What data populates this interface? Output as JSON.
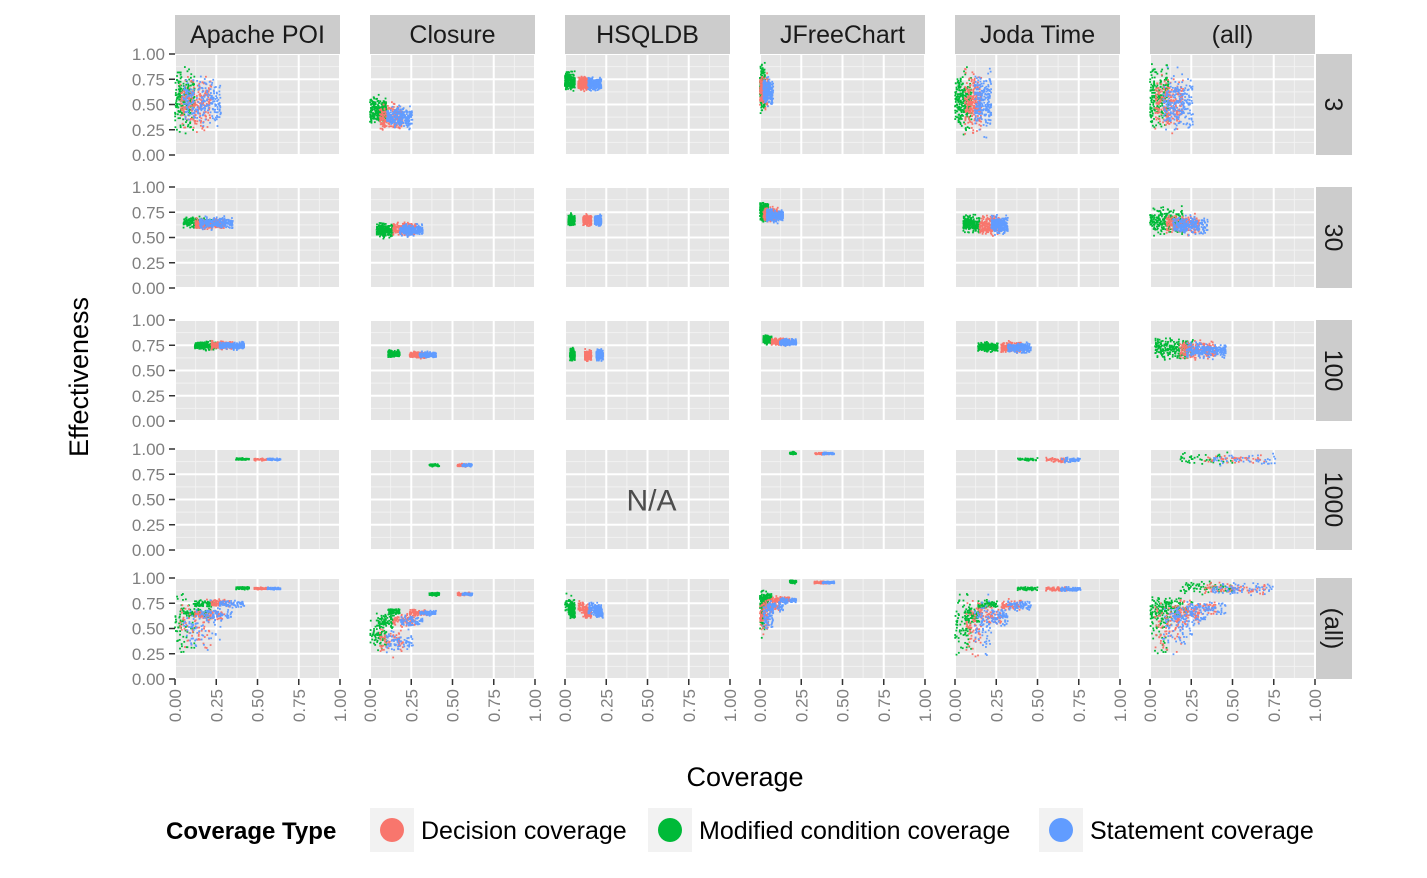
{
  "chart_data": {
    "type": "scatter",
    "facet_columns": [
      "Apache POI",
      "Closure",
      "HSQLDB",
      "JFreeChart",
      "Joda Time",
      "(all)"
    ],
    "facet_rows": [
      "3",
      "30",
      "100",
      "1000",
      "(all)"
    ],
    "xlabel": "Coverage",
    "ylabel": "Effectiveness",
    "xlim": [
      0,
      1
    ],
    "ylim": [
      0,
      1
    ],
    "x_ticks": [
      "0.00",
      "0.25",
      "0.50",
      "0.75",
      "1.00"
    ],
    "y_ticks": [
      "0.00",
      "0.25",
      "0.50",
      "0.75",
      "1.00"
    ],
    "grid": true,
    "legend": {
      "title": "Coverage Type",
      "position": "bottom",
      "items": [
        {
          "name": "Decision coverage",
          "color": "#F8766D"
        },
        {
          "name": "Modified condition coverage",
          "color": "#00BA38"
        },
        {
          "name": "Statement coverage",
          "color": "#619CFF"
        }
      ]
    },
    "missing_panel_label": "N/A",
    "missing_panels": [
      {
        "row": "1000",
        "col": "HSQLDB"
      }
    ],
    "series_keys": [
      "decision",
      "mcc",
      "statement"
    ],
    "clusters": {
      "Apache POI": {
        "3": {
          "decision": {
            "x": [
              0.03,
              0.22
            ],
            "y": [
              0.18,
              0.85
            ]
          },
          "mcc": {
            "x": [
              0.0,
              0.12
            ],
            "y": [
              0.15,
              0.95
            ]
          },
          "statement": {
            "x": [
              0.05,
              0.28
            ],
            "y": [
              0.2,
              0.82
            ]
          }
        },
        "30": {
          "decision": {
            "x": [
              0.12,
              0.3
            ],
            "y": [
              0.57,
              0.7
            ]
          },
          "mcc": {
            "x": [
              0.05,
              0.22
            ],
            "y": [
              0.58,
              0.72
            ]
          },
          "statement": {
            "x": [
              0.15,
              0.35
            ],
            "y": [
              0.56,
              0.72
            ]
          }
        },
        "100": {
          "decision": {
            "x": [
              0.22,
              0.35
            ],
            "y": [
              0.7,
              0.8
            ]
          },
          "mcc": {
            "x": [
              0.12,
              0.25
            ],
            "y": [
              0.69,
              0.8
            ]
          },
          "statement": {
            "x": [
              0.27,
              0.42
            ],
            "y": [
              0.7,
              0.79
            ]
          }
        },
        "1000": {
          "decision": {
            "x": [
              0.48,
              0.56
            ],
            "y": [
              0.88,
              0.91
            ]
          },
          "mcc": {
            "x": [
              0.37,
              0.45
            ],
            "y": [
              0.88,
              0.92
            ]
          },
          "statement": {
            "x": [
              0.56,
              0.64
            ],
            "y": [
              0.88,
              0.91
            ]
          }
        }
      },
      "Closure": {
        "3": {
          "decision": {
            "x": [
              0.06,
              0.2
            ],
            "y": [
              0.2,
              0.55
            ]
          },
          "mcc": {
            "x": [
              0.0,
              0.1
            ],
            "y": [
              0.25,
              0.62
            ]
          },
          "statement": {
            "x": [
              0.1,
              0.26
            ],
            "y": [
              0.22,
              0.52
            ]
          }
        },
        "30": {
          "decision": {
            "x": [
              0.14,
              0.28
            ],
            "y": [
              0.5,
              0.67
            ]
          },
          "mcc": {
            "x": [
              0.04,
              0.14
            ],
            "y": [
              0.48,
              0.66
            ]
          },
          "statement": {
            "x": [
              0.18,
              0.32
            ],
            "y": [
              0.5,
              0.65
            ]
          }
        },
        "100": {
          "decision": {
            "x": [
              0.24,
              0.35
            ],
            "y": [
              0.61,
              0.7
            ]
          },
          "mcc": {
            "x": [
              0.11,
              0.18
            ],
            "y": [
              0.62,
              0.71
            ]
          },
          "statement": {
            "x": [
              0.3,
              0.4
            ],
            "y": [
              0.62,
              0.69
            ]
          }
        },
        "1000": {
          "decision": {
            "x": [
              0.53,
              0.61
            ],
            "y": [
              0.82,
              0.86
            ]
          },
          "mcc": {
            "x": [
              0.36,
              0.42
            ],
            "y": [
              0.82,
              0.86
            ]
          },
          "statement": {
            "x": [
              0.56,
              0.62
            ],
            "y": [
              0.82,
              0.86
            ]
          }
        }
      },
      "HSQLDB": {
        "3": {
          "decision": {
            "x": [
              0.08,
              0.14
            ],
            "y": [
              0.62,
              0.8
            ]
          },
          "mcc": {
            "x": [
              0.0,
              0.06
            ],
            "y": [
              0.62,
              0.85
            ]
          },
          "statement": {
            "x": [
              0.14,
              0.22
            ],
            "y": [
              0.62,
              0.78
            ]
          }
        },
        "30": {
          "decision": {
            "x": [
              0.11,
              0.16
            ],
            "y": [
              0.6,
              0.74
            ]
          },
          "mcc": {
            "x": [
              0.02,
              0.06
            ],
            "y": [
              0.6,
              0.75
            ]
          },
          "statement": {
            "x": [
              0.18,
              0.22
            ],
            "y": [
              0.6,
              0.74
            ]
          }
        },
        "100": {
          "decision": {
            "x": [
              0.12,
              0.16
            ],
            "y": [
              0.58,
              0.72
            ]
          },
          "mcc": {
            "x": [
              0.03,
              0.06
            ],
            "y": [
              0.58,
              0.74
            ]
          },
          "statement": {
            "x": [
              0.19,
              0.23
            ],
            "y": [
              0.58,
              0.72
            ]
          }
        }
      },
      "JFreeChart": {
        "3": {
          "decision": {
            "x": [
              0.0,
              0.05
            ],
            "y": [
              0.42,
              0.85
            ]
          },
          "mcc": {
            "x": [
              0.0,
              0.03
            ],
            "y": [
              0.35,
              0.98
            ]
          },
          "statement": {
            "x": [
              0.02,
              0.08
            ],
            "y": [
              0.45,
              0.8
            ]
          }
        },
        "30": {
          "decision": {
            "x": [
              0.02,
              0.12
            ],
            "y": [
              0.64,
              0.82
            ]
          },
          "mcc": {
            "x": [
              0.0,
              0.05
            ],
            "y": [
              0.63,
              0.88
            ]
          },
          "statement": {
            "x": [
              0.04,
              0.14
            ],
            "y": [
              0.63,
              0.8
            ]
          }
        },
        "100": {
          "decision": {
            "x": [
              0.07,
              0.18
            ],
            "y": [
              0.74,
              0.83
            ]
          },
          "mcc": {
            "x": [
              0.02,
              0.07
            ],
            "y": [
              0.75,
              0.86
            ]
          },
          "statement": {
            "x": [
              0.12,
              0.22
            ],
            "y": [
              0.74,
              0.82
            ]
          }
        },
        "1000": {
          "decision": {
            "x": [
              0.33,
              0.41
            ],
            "y": [
              0.94,
              0.97
            ]
          },
          "mcc": {
            "x": [
              0.18,
              0.22
            ],
            "y": [
              0.94,
              0.98
            ]
          },
          "statement": {
            "x": [
              0.38,
              0.45
            ],
            "y": [
              0.94,
              0.97
            ]
          }
        }
      },
      "Joda Time": {
        "3": {
          "decision": {
            "x": [
              0.06,
              0.16
            ],
            "y": [
              0.15,
              0.9
            ]
          },
          "mcc": {
            "x": [
              0.0,
              0.1
            ],
            "y": [
              0.15,
              0.92
            ]
          },
          "statement": {
            "x": [
              0.12,
              0.22
            ],
            "y": [
              0.15,
              0.9
            ]
          }
        },
        "30": {
          "decision": {
            "x": [
              0.15,
              0.28
            ],
            "y": [
              0.5,
              0.75
            ]
          },
          "mcc": {
            "x": [
              0.05,
              0.15
            ],
            "y": [
              0.52,
              0.75
            ]
          },
          "statement": {
            "x": [
              0.22,
              0.32
            ],
            "y": [
              0.5,
              0.74
            ]
          }
        },
        "100": {
          "decision": {
            "x": [
              0.28,
              0.4
            ],
            "y": [
              0.66,
              0.8
            ]
          },
          "mcc": {
            "x": [
              0.14,
              0.26
            ],
            "y": [
              0.67,
              0.8
            ]
          },
          "statement": {
            "x": [
              0.32,
              0.46
            ],
            "y": [
              0.66,
              0.79
            ]
          }
        },
        "1000": {
          "decision": {
            "x": [
              0.55,
              0.68
            ],
            "y": [
              0.86,
              0.92
            ]
          },
          "mcc": {
            "x": [
              0.38,
              0.5
            ],
            "y": [
              0.87,
              0.92
            ]
          },
          "statement": {
            "x": [
              0.64,
              0.76
            ],
            "y": [
              0.86,
              0.92
            ]
          }
        }
      },
      "(all)": {
        "3": {
          "decision": {
            "x": [
              0.03,
              0.2
            ],
            "y": [
              0.15,
              0.9
            ]
          },
          "mcc": {
            "x": [
              0.0,
              0.12
            ],
            "y": [
              0.15,
              0.97
            ]
          },
          "statement": {
            "x": [
              0.08,
              0.26
            ],
            "y": [
              0.15,
              0.88
            ]
          }
        },
        "30": {
          "decision": {
            "x": [
              0.1,
              0.3
            ],
            "y": [
              0.5,
              0.76
            ]
          },
          "mcc": {
            "x": [
              0.0,
              0.2
            ],
            "y": [
              0.48,
              0.85
            ]
          },
          "statement": {
            "x": [
              0.14,
              0.35
            ],
            "y": [
              0.5,
              0.74
            ]
          }
        },
        "100": {
          "decision": {
            "x": [
              0.18,
              0.4
            ],
            "y": [
              0.58,
              0.82
            ]
          },
          "mcc": {
            "x": [
              0.03,
              0.26
            ],
            "y": [
              0.58,
              0.86
            ]
          },
          "statement": {
            "x": [
              0.22,
              0.46
            ],
            "y": [
              0.6,
              0.8
            ]
          }
        },
        "1000": {
          "decision": {
            "x": [
              0.33,
              0.7
            ],
            "y": [
              0.82,
              0.97
            ]
          },
          "mcc": {
            "x": [
              0.18,
              0.5
            ],
            "y": [
              0.82,
              0.98
            ]
          },
          "statement": {
            "x": [
              0.38,
              0.76
            ],
            "y": [
              0.82,
              0.97
            ]
          }
        }
      }
    }
  }
}
